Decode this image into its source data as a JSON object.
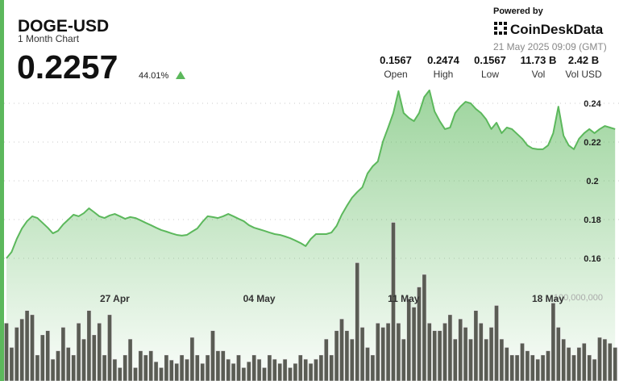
{
  "header": {
    "title": "DOGE-USD",
    "subtitle": "1 Month Chart",
    "price": "0.2257",
    "change": "44.01%",
    "powered_by": "Powered by",
    "brand": "CoinDeskData",
    "timestamp": "21 May 2025 09:09 (GMT)",
    "stats": [
      {
        "value": "0.1567",
        "label": "Open"
      },
      {
        "value": "0.2474",
        "label": "High"
      },
      {
        "value": "0.1567",
        "label": "Low"
      },
      {
        "value": "11.73 B",
        "label": "Vol"
      },
      {
        "value": "2.42 B",
        "label": "Vol USD"
      }
    ]
  },
  "chart_data": {
    "type": "line",
    "categories": [
      null,
      null,
      null,
      null,
      null,
      null,
      null,
      null,
      null,
      null,
      null,
      null,
      null,
      null,
      null,
      null,
      null,
      null,
      null,
      null,
      null,
      "27 Apr",
      null,
      null,
      null,
      null,
      null,
      null,
      null,
      null,
      null,
      null,
      null,
      null,
      null,
      null,
      null,
      null,
      null,
      null,
      null,
      null,
      null,
      null,
      null,
      null,
      null,
      null,
      null,
      "04 May",
      null,
      null,
      null,
      null,
      null,
      null,
      null,
      null,
      null,
      null,
      null,
      null,
      null,
      null,
      null,
      null,
      null,
      null,
      null,
      null,
      null,
      null,
      null,
      null,
      null,
      null,
      null,
      "11 May",
      null,
      null,
      null,
      null,
      null,
      null,
      null,
      null,
      null,
      null,
      null,
      null,
      null,
      null,
      null,
      null,
      null,
      null,
      null,
      null,
      null,
      null,
      null,
      null,
      null,
      null,
      null,
      "18 May",
      null,
      null,
      null,
      null,
      null,
      null,
      null,
      null,
      null,
      null,
      null,
      null,
      null
    ],
    "series": [
      {
        "type": "area",
        "color": "#5cb85c",
        "values": [
          0.16,
          0.1633,
          0.17,
          0.1754,
          0.1792,
          0.1817,
          0.1808,
          0.1783,
          0.1758,
          0.1729,
          0.1742,
          0.1775,
          0.18,
          0.1825,
          0.1817,
          0.1833,
          0.1858,
          0.1838,
          0.1817,
          0.1808,
          0.1821,
          0.1829,
          0.1817,
          0.1804,
          0.1813,
          0.1808,
          0.1796,
          0.1783,
          0.1771,
          0.1758,
          0.1746,
          0.1738,
          0.1729,
          0.1721,
          0.1717,
          0.1721,
          0.1738,
          0.1754,
          0.1788,
          0.1817,
          0.1813,
          0.1808,
          0.1817,
          0.1829,
          0.1817,
          0.1804,
          0.1792,
          0.1771,
          0.1758,
          0.175,
          0.1742,
          0.1733,
          0.1725,
          0.1721,
          0.1713,
          0.1704,
          0.1692,
          0.1679,
          0.1663,
          0.17,
          0.1725,
          0.1725,
          0.1725,
          0.1733,
          0.1767,
          0.1825,
          0.1871,
          0.1913,
          0.1942,
          0.1967,
          0.2038,
          0.2075,
          0.21,
          0.2204,
          0.2275,
          0.235,
          0.2463,
          0.235,
          0.2325,
          0.2308,
          0.235,
          0.2433,
          0.2467,
          0.2358,
          0.2308,
          0.2267,
          0.2275,
          0.235,
          0.2383,
          0.2408,
          0.24,
          0.2371,
          0.235,
          0.2317,
          0.2267,
          0.23,
          0.2246,
          0.2275,
          0.2267,
          0.2242,
          0.2217,
          0.2183,
          0.2167,
          0.2163,
          0.2163,
          0.2183,
          0.2246,
          0.2383,
          0.2233,
          0.2183,
          0.2163,
          0.2217,
          0.2246,
          0.2267,
          0.2246,
          0.2267,
          0.2283,
          0.2275,
          0.2267
        ]
      },
      {
        "type": "bar",
        "axis": "y2",
        "color": "#5a5c54",
        "values": [
          69000000,
          40000000,
          64000000,
          74000000,
          84000000,
          79000000,
          31000000,
          55000000,
          60000000,
          26000000,
          36000000,
          64000000,
          40000000,
          31000000,
          69000000,
          50000000,
          84000000,
          55000000,
          69000000,
          31000000,
          79000000,
          26000000,
          16000000,
          31000000,
          50000000,
          16000000,
          36000000,
          31000000,
          36000000,
          23000000,
          16000000,
          31000000,
          25000000,
          21000000,
          31000000,
          26000000,
          52000000,
          31000000,
          21000000,
          31000000,
          60000000,
          36000000,
          36000000,
          26000000,
          21000000,
          31000000,
          16000000,
          23000000,
          31000000,
          26000000,
          16000000,
          31000000,
          26000000,
          21000000,
          26000000,
          16000000,
          21000000,
          31000000,
          26000000,
          21000000,
          26000000,
          31000000,
          50000000,
          31000000,
          60000000,
          74000000,
          60000000,
          50000000,
          141000000,
          64000000,
          40000000,
          31000000,
          69000000,
          64000000,
          69000000,
          189000000,
          69000000,
          50000000,
          98000000,
          88000000,
          112000000,
          127000000,
          69000000,
          60000000,
          60000000,
          69000000,
          79000000,
          50000000,
          74000000,
          64000000,
          50000000,
          84000000,
          69000000,
          50000000,
          64000000,
          90000000,
          50000000,
          40000000,
          31000000,
          31000000,
          45000000,
          36000000,
          31000000,
          26000000,
          31000000,
          36000000,
          93000000,
          64000000,
          50000000,
          40000000,
          31000000,
          40000000,
          45000000,
          31000000,
          26000000,
          52000000,
          50000000,
          45000000,
          40000000
        ]
      }
    ],
    "ylim": [
      0.1,
      0.25
    ],
    "yticks": [
      0.16,
      0.18,
      0.2,
      0.22,
      0.24
    ],
    "y2lim": [
      0,
      350000000
    ],
    "y2ticks": [
      {
        "value": 100000000,
        "label": "100,000,000"
      }
    ],
    "grid": true
  }
}
